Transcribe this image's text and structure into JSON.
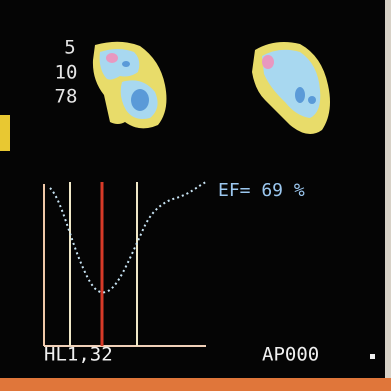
{
  "labels": {
    "counts": [
      "5",
      "10",
      "78"
    ],
    "ejection_fraction": "EF= 69 %",
    "curve_label": "HL1,32",
    "study_code": "AP000"
  }
}
